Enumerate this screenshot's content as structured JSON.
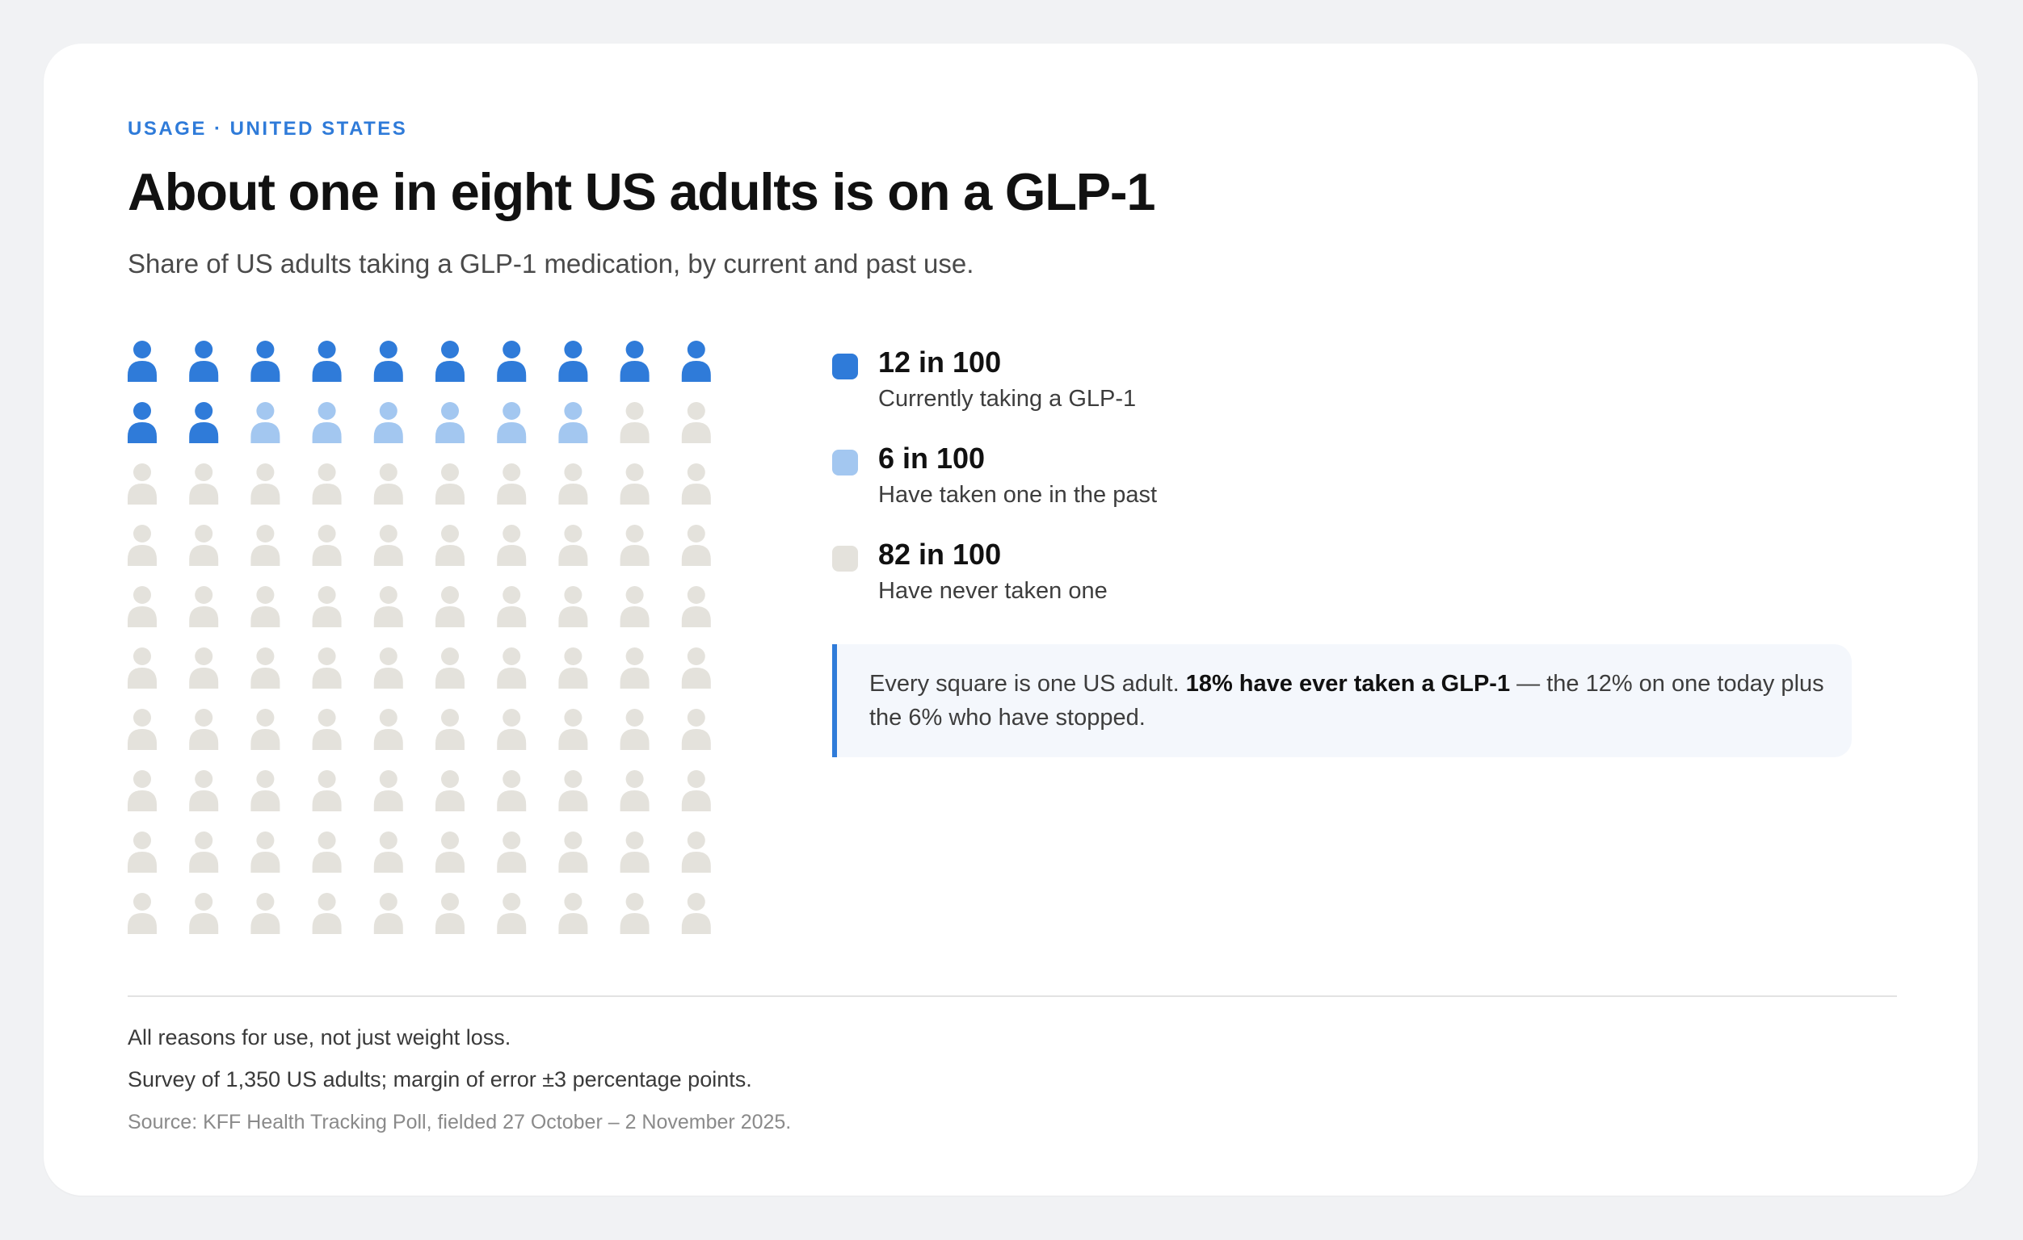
{
  "header": {
    "eyebrow": "USAGE · UNITED STATES",
    "title": "About one in eight US adults is on a GLP-1",
    "subtitle": "Share of US adults taking a GLP-1 medication, by current and past use."
  },
  "chart_data": {
    "type": "waffle",
    "total": 100,
    "columns": 10,
    "rows": 10,
    "icon": "person-icon",
    "segments": [
      {
        "value": 12,
        "display": "12 in 100",
        "label": "Currently taking a GLP-1",
        "color": "#2f7bd9"
      },
      {
        "value": 6,
        "display": "6 in 100",
        "label": "Have taken one in the past",
        "color": "#a3c7f0"
      },
      {
        "value": 82,
        "display": "82 in 100",
        "label": "Have never taken one",
        "color": "#e4e2dc"
      }
    ]
  },
  "callout": {
    "text_before": "Every square is one US adult. ",
    "bold": "18% have ever taken a GLP-1",
    "text_after": " — the 12% on one today plus the 6% who have stopped."
  },
  "footer": {
    "note1": "All reasons for use, not just weight loss.",
    "note2": "Survey of 1,350 US adults; margin of error ±3 percentage points.",
    "source": "Source: KFF Health Tracking Poll, fielded 27 October – 2 November 2025."
  }
}
